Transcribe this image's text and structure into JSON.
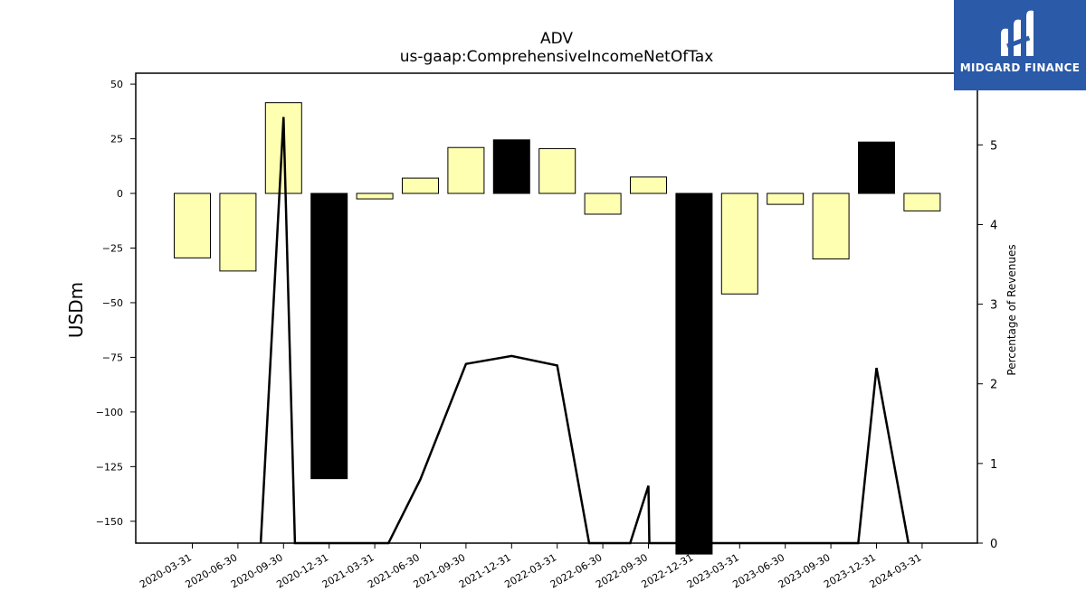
{
  "title": "ADV",
  "subtitle": "us-gaap:ComprehensiveIncomeNetOfTax",
  "logo": {
    "text": "MIDGARD FINANCE",
    "bg": "#2a5aa8"
  },
  "chart_data": {
    "type": "bar",
    "categories": [
      "2020-03-31",
      "2020-06-30",
      "2020-09-30",
      "2020-12-31",
      "2021-03-31",
      "2021-06-30",
      "2021-09-30",
      "2021-12-31",
      "2022-03-31",
      "2022-06-30",
      "2022-09-30",
      "2022-12-31",
      "2023-03-31",
      "2023-06-30",
      "2023-09-30",
      "2023-12-31",
      "2024-03-31"
    ],
    "values": [
      -29.5,
      -35.5,
      41.5,
      -130.5,
      -2.5,
      7,
      21,
      24.5,
      20.5,
      -9.5,
      7.5,
      -165,
      -46,
      -5,
      -30,
      23.5,
      -8
    ],
    "bar_colors": [
      "#ffffb2",
      "#ffffb2",
      "#ffffb2",
      "#000000",
      "#ffffb2",
      "#ffffb2",
      "#ffffb2",
      "#000000",
      "#ffffb2",
      "#ffffb2",
      "#ffffb2",
      "#000000",
      "#ffffb2",
      "#ffffb2",
      "#ffffb2",
      "#000000",
      "#ffffb2"
    ],
    "ylabel": "USDm",
    "ylim": [
      -160,
      55
    ],
    "yticks": [
      50,
      25,
      0,
      -25,
      -50,
      -75,
      -100,
      -125,
      -150
    ],
    "y2label": "Percentage of Revenues",
    "y2lim": [
      0,
      5.9
    ],
    "y2ticks": [
      0,
      1,
      2,
      3,
      4,
      5
    ],
    "line": {
      "points": [
        {
          "x": 1.5,
          "y": 0
        },
        {
          "x": 2,
          "y": 5.35
        },
        {
          "x": 2.25,
          "y": 0
        },
        {
          "x": 4.3,
          "y": 0
        },
        {
          "x": 5,
          "y": 0.8
        },
        {
          "x": 6,
          "y": 2.25
        },
        {
          "x": 7,
          "y": 2.35
        },
        {
          "x": 8,
          "y": 2.23
        },
        {
          "x": 8.7,
          "y": 0
        },
        {
          "x": 9.6,
          "y": 0
        },
        {
          "x": 10,
          "y": 0.72
        },
        {
          "x": 10.02,
          "y": 0
        },
        {
          "x": 14.6,
          "y": 0
        },
        {
          "x": 15,
          "y": 2.2
        },
        {
          "x": 15.7,
          "y": 0
        }
      ],
      "color": "#000000"
    }
  }
}
